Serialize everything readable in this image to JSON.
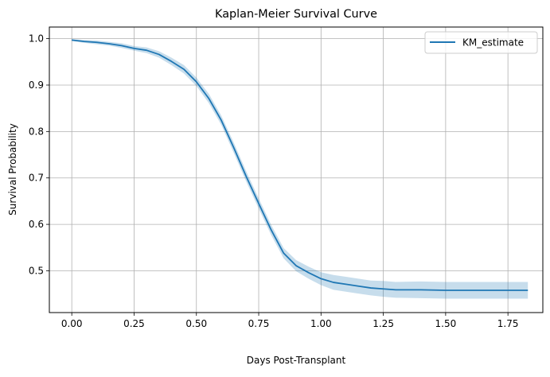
{
  "chart_data": {
    "type": "line",
    "title": "Kaplan-Meier Survival Curve",
    "xlabel": "Days Post-Transplant",
    "ylabel": "Survival Probability",
    "xlim": [
      -0.09,
      1.89
    ],
    "ylim": [
      0.41,
      1.025
    ],
    "xticks": [
      0.0,
      0.25,
      0.5,
      0.75,
      1.0,
      1.25,
      1.5,
      1.75
    ],
    "xtick_labels": [
      "0.00",
      "0.25",
      "0.50",
      "0.75",
      "1.00",
      "1.25",
      "1.50",
      "1.75"
    ],
    "yticks": [
      0.5,
      0.6,
      0.7,
      0.8,
      0.9,
      1.0
    ],
    "ytick_labels": [
      "0.5",
      "0.6",
      "0.7",
      "0.8",
      "0.9",
      "1.0"
    ],
    "grid": true,
    "legend": {
      "placement": "top-right",
      "entries": [
        "KM_estimate"
      ]
    },
    "colors": {
      "line": "#1f77b4",
      "ci_fill": "#1f77b4",
      "grid": "#b0b0b0"
    },
    "series": [
      {
        "name": "KM_estimate",
        "x": [
          0.0,
          0.05,
          0.1,
          0.15,
          0.2,
          0.25,
          0.3,
          0.35,
          0.4,
          0.45,
          0.5,
          0.55,
          0.6,
          0.65,
          0.7,
          0.75,
          0.8,
          0.85,
          0.9,
          0.95,
          1.0,
          1.05,
          1.1,
          1.15,
          1.2,
          1.25,
          1.3,
          1.4,
          1.5,
          1.6,
          1.7,
          1.83
        ],
        "y": [
          0.997,
          0.994,
          0.992,
          0.989,
          0.985,
          0.979,
          0.975,
          0.966,
          0.951,
          0.934,
          0.907,
          0.871,
          0.824,
          0.765,
          0.703,
          0.645,
          0.588,
          0.538,
          0.511,
          0.496,
          0.483,
          0.475,
          0.471,
          0.467,
          0.463,
          0.461,
          0.459,
          0.459,
          0.458,
          0.458,
          0.458,
          0.458
        ],
        "ci_lower": [
          0.995,
          0.991,
          0.988,
          0.985,
          0.98,
          0.974,
          0.969,
          0.959,
          0.943,
          0.925,
          0.898,
          0.861,
          0.814,
          0.754,
          0.692,
          0.634,
          0.577,
          0.527,
          0.499,
          0.483,
          0.469,
          0.459,
          0.455,
          0.451,
          0.447,
          0.444,
          0.442,
          0.441,
          0.44,
          0.44,
          0.44,
          0.44
        ],
        "ci_upper": [
          0.999,
          0.997,
          0.996,
          0.993,
          0.99,
          0.984,
          0.981,
          0.973,
          0.959,
          0.943,
          0.916,
          0.881,
          0.834,
          0.776,
          0.714,
          0.656,
          0.599,
          0.549,
          0.523,
          0.509,
          0.497,
          0.491,
          0.487,
          0.483,
          0.479,
          0.478,
          0.476,
          0.477,
          0.476,
          0.476,
          0.476,
          0.476
        ]
      }
    ]
  }
}
